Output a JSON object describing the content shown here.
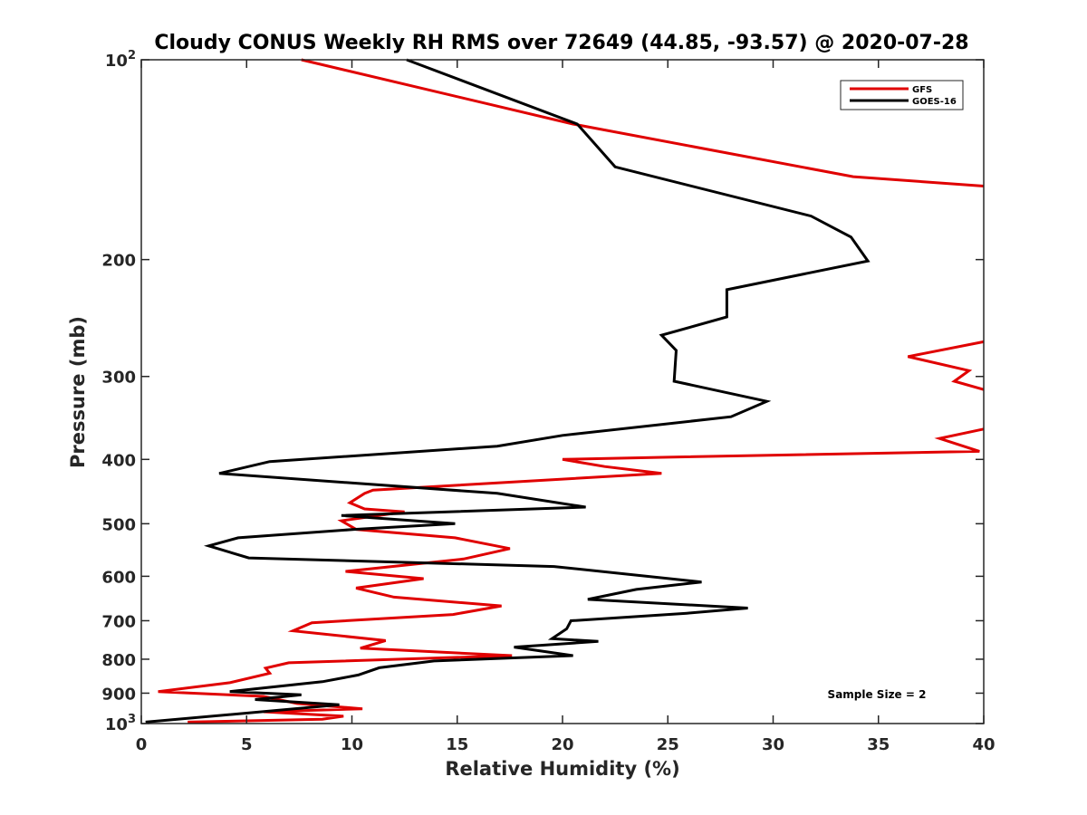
{
  "chart_data": {
    "type": "line",
    "title": "Cloudy CONUS Weekly RH RMS over 72649 (44.85, -93.57) @ 2020-07-28",
    "xlabel": "Relative Humidity (%)",
    "ylabel": "Pressure (mb)",
    "xlim": [
      0,
      40
    ],
    "ylim": [
      100,
      1000
    ],
    "y_scale": "log",
    "y_reversed": true,
    "grid": false,
    "legend_position": "top-right",
    "x_ticks": [
      0,
      5,
      10,
      15,
      20,
      25,
      30,
      35,
      40
    ],
    "x_tick_labels": [
      "0",
      "5",
      "10",
      "15",
      "20",
      "25",
      "30",
      "35",
      "40"
    ],
    "y_ticks": [
      100,
      200,
      300,
      400,
      500,
      600,
      700,
      800,
      900,
      1000
    ],
    "y_tick_labels": [
      {
        "base": "10",
        "exp": "2"
      },
      {
        "base": "200",
        "exp": ""
      },
      {
        "base": "300",
        "exp": ""
      },
      {
        "base": "400",
        "exp": ""
      },
      {
        "base": "500",
        "exp": ""
      },
      {
        "base": "600",
        "exp": ""
      },
      {
        "base": "700",
        "exp": ""
      },
      {
        "base": "800",
        "exp": ""
      },
      {
        "base": "900",
        "exp": ""
      },
      {
        "base": "10",
        "exp": "3"
      }
    ],
    "annotation": "Sample Size = 2",
    "series": [
      {
        "name": "GFS",
        "color": "#e00000",
        "segments": [
          [
            [
              7.6,
              100
            ],
            [
              20.5,
              125
            ],
            [
              33.8,
              150
            ],
            [
              40.0,
              155
            ]
          ],
          [
            [
              40.0,
              266
            ],
            [
              36.4,
              280
            ],
            [
              39.3,
              294
            ],
            [
              38.6,
              305
            ],
            [
              40.0,
              314
            ]
          ],
          [
            [
              40.0,
              360
            ],
            [
              37.9,
              372
            ],
            [
              39.8,
              389
            ],
            [
              25.0,
              397
            ],
            [
              20.0,
              400
            ],
            [
              22.0,
              410
            ],
            [
              24.7,
              420
            ],
            [
              11.0,
              445
            ],
            [
              10.6,
              450
            ],
            [
              9.9,
              465
            ],
            [
              10.6,
              475
            ],
            [
              12.5,
              480
            ],
            [
              9.5,
              495
            ],
            [
              10.2,
              510
            ],
            [
              14.9,
              525
            ],
            [
              17.5,
              545
            ],
            [
              15.3,
              565
            ],
            [
              9.7,
              590
            ],
            [
              13.4,
              605
            ],
            [
              10.2,
              625
            ],
            [
              12.0,
              645
            ],
            [
              17.1,
              665
            ],
            [
              14.8,
              685
            ],
            [
              8.1,
              705
            ],
            [
              7.2,
              725
            ],
            [
              11.6,
              750
            ],
            [
              10.4,
              770
            ],
            [
              17.6,
              790
            ],
            [
              7.0,
              810
            ],
            [
              5.9,
              825
            ],
            [
              6.1,
              840
            ],
            [
              4.2,
              868
            ],
            [
              0.8,
              895
            ],
            [
              5.8,
              910
            ],
            [
              7.4,
              933
            ],
            [
              10.5,
              950
            ],
            [
              5.8,
              960
            ],
            [
              9.6,
              975
            ],
            [
              8.6,
              985
            ],
            [
              2.2,
              995
            ]
          ]
        ]
      },
      {
        "name": "GOES-16",
        "color": "#000000",
        "segments": [
          [
            [
              12.6,
              100
            ],
            [
              20.7,
              125
            ],
            [
              22.5,
              145
            ],
            [
              31.8,
              172
            ],
            [
              33.7,
              185
            ],
            [
              34.5,
              201
            ],
            [
              27.8,
              222
            ],
            [
              27.8,
              244
            ],
            [
              24.7,
              260
            ],
            [
              25.4,
              274
            ],
            [
              25.3,
              305
            ],
            [
              29.7,
              327
            ],
            [
              28.0,
              345
            ],
            [
              20.0,
              368
            ],
            [
              16.9,
              382
            ],
            [
              6.1,
              403
            ],
            [
              3.7,
              420
            ],
            [
              16.9,
              450
            ],
            [
              21.1,
              472
            ],
            [
              9.5,
              486
            ],
            [
              14.9,
              500
            ],
            [
              10.1,
              510
            ],
            [
              4.6,
              525
            ],
            [
              3.2,
              540
            ],
            [
              5.1,
              563
            ],
            [
              19.6,
              580
            ],
            [
              26.6,
              612
            ],
            [
              23.5,
              628
            ],
            [
              21.2,
              650
            ],
            [
              28.8,
              670
            ],
            [
              25.9,
              682
            ],
            [
              20.4,
              700
            ],
            [
              20.2,
              720
            ],
            [
              19.5,
              745
            ],
            [
              21.7,
              752
            ],
            [
              17.7,
              767
            ],
            [
              20.5,
              790
            ],
            [
              13.9,
              805
            ],
            [
              11.3,
              824
            ],
            [
              10.3,
              845
            ],
            [
              8.6,
              865
            ],
            [
              4.2,
              895
            ],
            [
              7.6,
              905
            ],
            [
              5.4,
              920
            ],
            [
              9.4,
              937
            ],
            [
              0.2,
              995
            ]
          ]
        ]
      }
    ]
  }
}
